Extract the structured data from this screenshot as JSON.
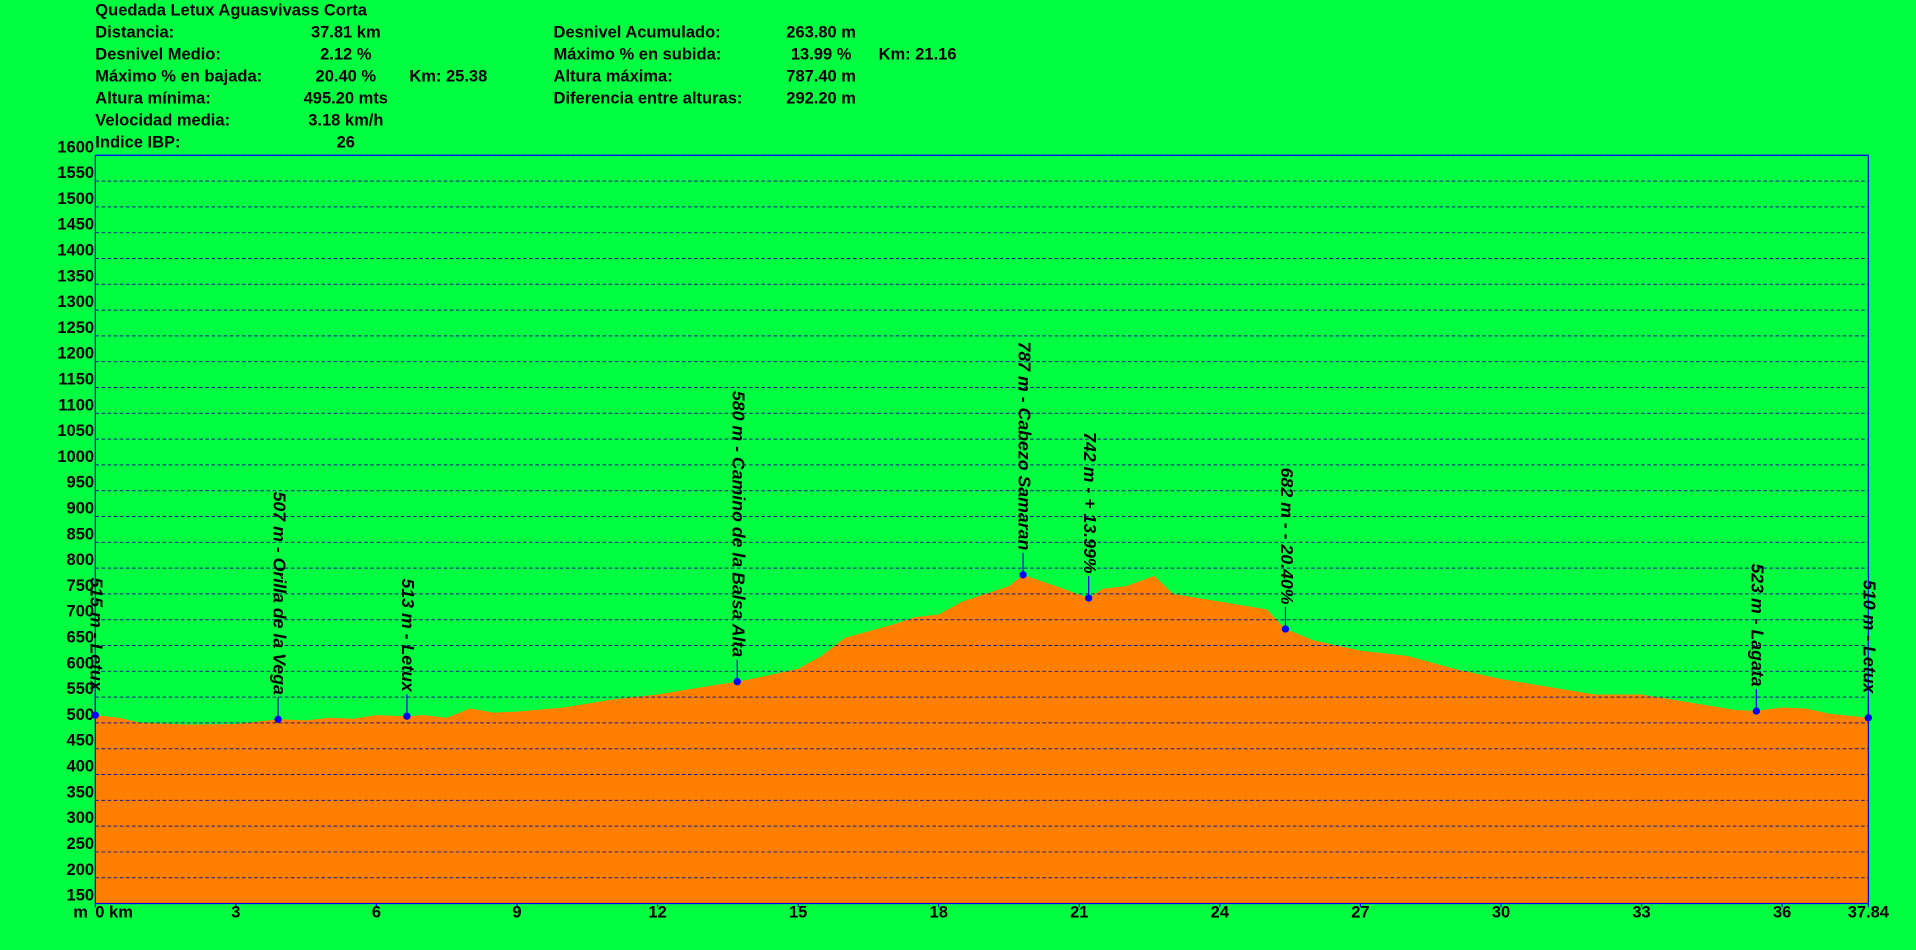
{
  "chart_data": {
    "type": "area",
    "title": "Quedada Letux Aguasvivass Corta",
    "stats_left": [
      {
        "label": "Distancia:",
        "value": "37.81 km"
      },
      {
        "label": "Desnivel Medio:",
        "value": "2.12 %"
      },
      {
        "label": "Máximo % en bajada:",
        "value": "20.40 %",
        "extra": "Km: 25.38"
      },
      {
        "label": "Altura mínima:",
        "value": "495.20 mts"
      },
      {
        "label": "Velocidad media:",
        "value": "3.18 km/h"
      },
      {
        "label": "Indice IBP:",
        "value": "26"
      }
    ],
    "stats_right": [
      {
        "label": "Desnivel Acumulado:",
        "value": "263.80 m"
      },
      {
        "label": "Máximo % en subida:",
        "value": "13.99 %",
        "extra": "Km: 21.16"
      },
      {
        "label": "Altura máxima:",
        "value": "787.40 m"
      },
      {
        "label": "Diferencia entre alturas:",
        "value": "292.20 m"
      }
    ],
    "y_unit": "m",
    "x": [
      0,
      0.5,
      1,
      2,
      3,
      3.9,
      4.5,
      5,
      5.5,
      6,
      6.65,
      7,
      7.5,
      8,
      8.5,
      9,
      10,
      11,
      12,
      13,
      13.7,
      14,
      15,
      15.5,
      16,
      17,
      17.5,
      18,
      18.5,
      19,
      19.5,
      19.8,
      20.5,
      21.2,
      21.5,
      22,
      22.6,
      23,
      24,
      25,
      25.4,
      26,
      27,
      28,
      29,
      30,
      31,
      32,
      33,
      34,
      35,
      35.45,
      36,
      36.5,
      37,
      37.84
    ],
    "values": [
      515,
      510,
      500,
      497,
      498,
      507,
      505,
      510,
      508,
      515,
      513,
      515,
      510,
      528,
      520,
      522,
      530,
      545,
      555,
      570,
      580,
      585,
      605,
      630,
      665,
      690,
      705,
      710,
      735,
      750,
      765,
      787,
      765,
      742,
      760,
      765,
      785,
      750,
      735,
      720,
      682,
      660,
      640,
      630,
      605,
      585,
      570,
      555,
      555,
      540,
      525,
      523,
      530,
      528,
      518,
      510
    ],
    "color": "#ff7f00",
    "annotations": [
      {
        "x": 0,
        "y": 515,
        "label": "515 m - Letux"
      },
      {
        "x": 3.9,
        "y": 507,
        "label": "507 m - Orilla de la Vega"
      },
      {
        "x": 6.65,
        "y": 513,
        "label": "513 m - Letux"
      },
      {
        "x": 13.7,
        "y": 580,
        "label": "580 m - Camino de la Balsa Alta"
      },
      {
        "x": 19.8,
        "y": 787,
        "label": "787 m - Cabezo Samaran"
      },
      {
        "x": 21.2,
        "y": 742,
        "label": "742 m - + 13.99%"
      },
      {
        "x": 25.4,
        "y": 682,
        "label": "682 m - - 20.40%"
      },
      {
        "x": 35.45,
        "y": 523,
        "label": "523 m - Lagata"
      },
      {
        "x": 37.84,
        "y": 510,
        "label": "510 m - Letux"
      }
    ],
    "xlim": [
      0,
      37.84
    ],
    "xticks": [
      {
        "value": 0,
        "label": "0 km"
      },
      3,
      6,
      9,
      12,
      15,
      18,
      21,
      24,
      27,
      30,
      33,
      36,
      37.84
    ],
    "ylim": [
      150,
      1600
    ],
    "yticks": [
      150,
      200,
      250,
      300,
      350,
      400,
      450,
      500,
      550,
      600,
      650,
      700,
      750,
      800,
      850,
      900,
      950,
      1000,
      1050,
      1100,
      1150,
      1200,
      1250,
      1300,
      1350,
      1400,
      1450,
      1500,
      1550,
      1600
    ],
    "grid": true
  }
}
